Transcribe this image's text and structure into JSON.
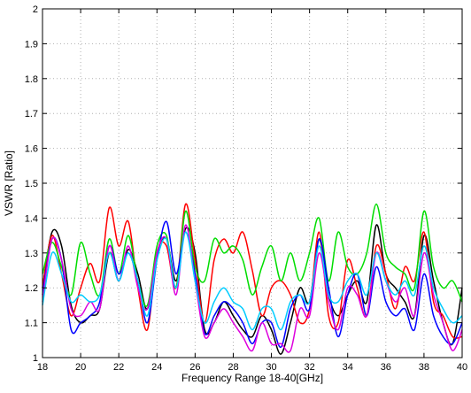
{
  "chart_data": {
    "type": "line",
    "title": "",
    "xlabel": "Frequency Range 18-40[GHz]",
    "ylabel": "VSWR [Ratio]",
    "xlim": [
      18,
      40
    ],
    "ylim": [
      1,
      2
    ],
    "xticks": [
      18,
      20,
      22,
      24,
      26,
      28,
      30,
      32,
      34,
      36,
      38,
      40
    ],
    "yticks": [
      1,
      1.1,
      1.2,
      1.3,
      1.4,
      1.5,
      1.6,
      1.7,
      1.8,
      1.9,
      2
    ],
    "grid": true,
    "legend": "none",
    "x": [
      18,
      18.5,
      19,
      19.5,
      20,
      20.5,
      21,
      21.5,
      22,
      22.5,
      23,
      23.5,
      24,
      24.5,
      25,
      25.5,
      26,
      26.5,
      27,
      27.5,
      28,
      28.5,
      29,
      29.5,
      30,
      30.5,
      31,
      31.5,
      32,
      32.5,
      33,
      33.5,
      34,
      34.5,
      35,
      35.5,
      36,
      36.5,
      37,
      37.5,
      38,
      38.5,
      39,
      39.5,
      40
    ],
    "series": [
      {
        "color": "#000000",
        "values": [
          1.2,
          1.36,
          1.32,
          1.15,
          1.1,
          1.12,
          1.14,
          1.3,
          1.22,
          1.31,
          1.24,
          1.14,
          1.3,
          1.34,
          1.22,
          1.37,
          1.3,
          1.08,
          1.1,
          1.16,
          1.12,
          1.08,
          1.06,
          1.12,
          1.08,
          1.01,
          1.1,
          1.2,
          1.16,
          1.34,
          1.18,
          1.12,
          1.18,
          1.22,
          1.16,
          1.38,
          1.24,
          1.2,
          1.16,
          1.12,
          1.35,
          1.22,
          1.1,
          1.04,
          1.2
        ]
      },
      {
        "color": "#ff0000",
        "values": [
          1.2,
          1.35,
          1.24,
          1.12,
          1.2,
          1.27,
          1.22,
          1.43,
          1.32,
          1.39,
          1.2,
          1.08,
          1.3,
          1.32,
          1.2,
          1.44,
          1.28,
          1.1,
          1.28,
          1.34,
          1.3,
          1.36,
          1.25,
          1.12,
          1.2,
          1.22,
          1.18,
          1.1,
          1.14,
          1.36,
          1.12,
          1.1,
          1.28,
          1.2,
          1.12,
          1.32,
          1.24,
          1.14,
          1.26,
          1.22,
          1.36,
          1.16,
          1.12,
          1.06,
          1.06
        ]
      },
      {
        "color": "#00dd00",
        "values": [
          1.24,
          1.33,
          1.26,
          1.18,
          1.33,
          1.24,
          1.18,
          1.34,
          1.24,
          1.35,
          1.22,
          1.15,
          1.32,
          1.35,
          1.2,
          1.42,
          1.26,
          1.22,
          1.34,
          1.3,
          1.32,
          1.28,
          1.18,
          1.26,
          1.32,
          1.22,
          1.3,
          1.22,
          1.3,
          1.4,
          1.22,
          1.36,
          1.26,
          1.24,
          1.3,
          1.44,
          1.3,
          1.26,
          1.24,
          1.2,
          1.42,
          1.26,
          1.2,
          1.22,
          1.16
        ]
      },
      {
        "color": "#0000ff",
        "values": [
          1.18,
          1.34,
          1.28,
          1.08,
          1.1,
          1.12,
          1.16,
          1.32,
          1.24,
          1.3,
          1.22,
          1.1,
          1.28,
          1.39,
          1.24,
          1.36,
          1.24,
          1.07,
          1.12,
          1.16,
          1.14,
          1.1,
          1.04,
          1.1,
          1.1,
          1.03,
          1.14,
          1.18,
          1.14,
          1.34,
          1.2,
          1.06,
          1.18,
          1.24,
          1.12,
          1.26,
          1.16,
          1.12,
          1.14,
          1.08,
          1.24,
          1.12,
          1.06,
          1.04,
          1.1
        ]
      },
      {
        "color": "#dd00dd",
        "values": [
          1.16,
          1.34,
          1.28,
          1.14,
          1.12,
          1.16,
          1.14,
          1.32,
          1.22,
          1.32,
          1.2,
          1.14,
          1.3,
          1.34,
          1.18,
          1.38,
          1.22,
          1.06,
          1.1,
          1.14,
          1.1,
          1.06,
          1.02,
          1.1,
          1.04,
          1.04,
          1.02,
          1.14,
          1.12,
          1.3,
          1.16,
          1.08,
          1.2,
          1.18,
          1.12,
          1.3,
          1.22,
          1.16,
          1.2,
          1.12,
          1.3,
          1.18,
          1.1,
          1.02,
          1.08
        ]
      },
      {
        "color": "#00ccff",
        "values": [
          1.15,
          1.3,
          1.24,
          1.16,
          1.18,
          1.16,
          1.18,
          1.3,
          1.22,
          1.3,
          1.22,
          1.12,
          1.28,
          1.34,
          1.2,
          1.36,
          1.22,
          1.1,
          1.16,
          1.2,
          1.16,
          1.14,
          1.08,
          1.14,
          1.14,
          1.08,
          1.16,
          1.18,
          1.16,
          1.32,
          1.18,
          1.16,
          1.22,
          1.24,
          1.18,
          1.3,
          1.22,
          1.18,
          1.22,
          1.18,
          1.32,
          1.2,
          1.14,
          1.1,
          1.12
        ]
      }
    ]
  }
}
